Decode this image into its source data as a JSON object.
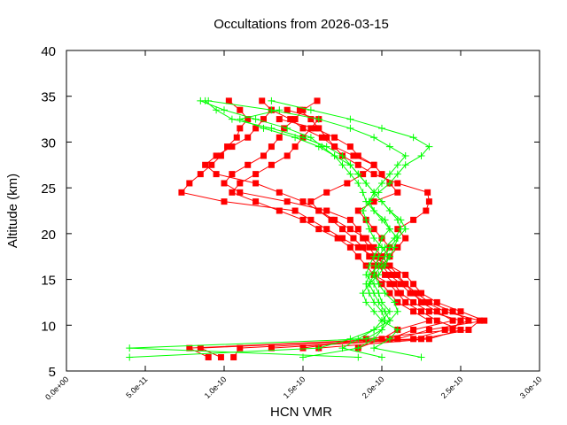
{
  "chart_data": {
    "type": "line",
    "title": "Occultations from 2026-03-15",
    "xlabel": "HCN VMR",
    "ylabel": "Altitude (km)",
    "xlim": [
      0,
      3e-10
    ],
    "ylim": [
      5,
      40
    ],
    "x_ticks": [
      "0.0e+00",
      "5.0e-11",
      "1.0e-10",
      "1.5e-10",
      "2.0e-10",
      "2.5e-10",
      "3.0e-10"
    ],
    "x_tick_values": [
      0,
      5e-11,
      1e-10,
      1.5e-10,
      2e-10,
      2.5e-10,
      3e-10
    ],
    "y_ticks": [
      "5",
      "10",
      "15",
      "20",
      "25",
      "30",
      "35",
      "40"
    ],
    "y_tick_values": [
      5,
      10,
      15,
      20,
      25,
      30,
      35,
      40
    ],
    "grid": false,
    "value_unit_scale": 1e-10,
    "altitudes": [
      6.5,
      7.5,
      8.5,
      9.5,
      10.5,
      11.5,
      12.5,
      13.5,
      14.5,
      15.5,
      16.5,
      17.5,
      18.5,
      19.5,
      20.5,
      21.5,
      22.5,
      23.5,
      24.5,
      25.5,
      26.5,
      27.5,
      28.5,
      29.5,
      30.5,
      31.5,
      32.5,
      33.5,
      34.5
    ],
    "colors": {
      "red_series": "#ff0000",
      "green_series": "#00ff00"
    },
    "series": [
      {
        "color": "#ff0000",
        "marker": "square",
        "values": [
          0.9,
          0.78,
          2.05,
          2.2,
          2.45,
          2.35,
          2.25,
          2.2,
          2.15,
          2.1,
          2.05,
          1.95,
          1.85,
          1.75,
          1.65,
          1.55,
          1.45,
          1.0,
          0.73,
          0.78,
          0.85,
          0.92,
          0.98,
          1.02,
          1.08,
          1.1,
          1.15,
          1.1,
          1.03
        ]
      },
      {
        "color": "#ff0000",
        "marker": "square",
        "values": [
          0.98,
          0.85,
          2.1,
          2.3,
          2.65,
          2.5,
          2.35,
          2.25,
          2.2,
          2.15,
          2.05,
          2.0,
          1.95,
          1.9,
          1.8,
          1.7,
          1.6,
          1.5,
          1.35,
          1.2,
          0.95,
          0.88,
          0.95,
          1.05,
          1.15,
          1.2,
          1.25,
          1.3,
          1.24
        ]
      },
      {
        "color": "#ff0000",
        "marker": "square",
        "values": [
          1.06,
          1.1,
          2.2,
          2.4,
          2.55,
          2.45,
          2.3,
          2.22,
          2.15,
          2.08,
          2.02,
          1.96,
          1.92,
          1.88,
          1.85,
          1.8,
          1.65,
          1.4,
          1.1,
          1.0,
          1.05,
          1.15,
          1.25,
          1.3,
          1.35,
          1.38,
          1.45,
          1.5,
          1.59
        ]
      },
      {
        "color": "#ff0000",
        "marker": "square",
        "values": [
          null,
          1.3,
          2.25,
          2.55,
          2.62,
          2.4,
          2.28,
          2.18,
          2.12,
          2.05,
          2.0,
          2.05,
          2.1,
          2.15,
          2.1,
          2.2,
          2.28,
          2.3,
          2.29,
          2.1,
          1.95,
          1.85,
          1.75,
          1.7,
          1.65,
          1.6,
          1.55,
          1.48,
          null
        ]
      },
      {
        "color": "#ff0000",
        "marker": "square",
        "values": [
          null,
          1.6,
          2.3,
          2.5,
          2.35,
          2.25,
          2.15,
          2.1,
          2.05,
          1.95,
          1.9,
          1.85,
          1.8,
          1.72,
          1.6,
          1.5,
          1.35,
          1.2,
          1.05,
          1.1,
          1.2,
          1.3,
          1.4,
          1.45,
          1.5,
          1.55,
          1.6,
          1.4,
          null
        ]
      },
      {
        "color": "#ff0000",
        "marker": "square",
        "values": [
          null,
          1.85,
          2.0,
          2.1,
          2.3,
          2.2,
          2.1,
          2.05,
          2.0,
          1.95,
          1.95,
          2.0,
          2.05,
          2.0,
          1.95,
          1.9,
          1.85,
          1.95,
          2.1,
          2.05,
          2.0,
          1.95,
          1.85,
          1.8,
          1.7,
          1.58,
          1.35,
          null,
          null
        ]
      },
      {
        "color": "#ff0000",
        "marker": "square",
        "values": [
          null,
          1.5,
          1.9,
          2.45,
          2.5,
          2.3,
          2.2,
          2.12,
          2.08,
          2.02,
          1.98,
          1.92,
          1.88,
          1.82,
          1.75,
          1.68,
          1.6,
          1.55,
          1.65,
          1.78,
          1.88,
          1.95,
          1.82,
          1.7,
          1.62,
          1.5,
          1.42,
          1.3,
          null
        ]
      },
      {
        "color": "#00ff00",
        "marker": "plus",
        "values": [
          0.4,
          1.6,
          1.8,
          1.95,
          2.0,
          2.05,
          2.0,
          1.98,
          1.95,
          1.9,
          1.92,
          1.95,
          1.98,
          2.0,
          2.05,
          2.02,
          1.95,
          1.9,
          1.88,
          1.85,
          1.8,
          1.75,
          1.7,
          1.62,
          1.55,
          1.4,
          1.2,
          1.0,
          0.85
        ]
      },
      {
        "color": "#00ff00",
        "marker": "plus",
        "values": [
          1.5,
          1.85,
          1.95,
          2.0,
          2.02,
          2.0,
          1.95,
          1.92,
          1.9,
          1.92,
          1.98,
          2.02,
          2.05,
          2.1,
          2.05,
          2.0,
          1.95,
          1.92,
          1.95,
          2.0,
          2.05,
          2.1,
          2.15,
          2.05,
          1.95,
          1.8,
          1.6,
          1.3,
          0.9
        ]
      },
      {
        "color": "#00ff00",
        "marker": "plus",
        "values": [
          1.85,
          0.4,
          1.9,
          2.0,
          2.05,
          2.02,
          1.98,
          1.95,
          1.92,
          1.95,
          2.0,
          2.05,
          2.08,
          2.1,
          2.15,
          2.12,
          2.05,
          2.0,
          1.95,
          1.9,
          1.85,
          1.8,
          1.75,
          1.65,
          1.5,
          1.3,
          1.05,
          0.95,
          0.88
        ]
      },
      {
        "color": "#00ff00",
        "marker": "plus",
        "values": [
          2.25,
          1.95,
          2.05,
          2.1,
          2.0,
          1.95,
          1.9,
          1.88,
          1.92,
          1.98,
          2.02,
          2.05,
          2.0,
          1.95,
          1.92,
          1.9,
          1.88,
          1.92,
          1.98,
          2.05,
          2.1,
          2.15,
          2.25,
          2.3,
          2.2,
          2.0,
          1.8,
          1.55,
          1.3
        ]
      },
      {
        "color": "#00ff00",
        "marker": "plus",
        "values": [
          2.0,
          1.75,
          1.85,
          1.95,
          2.05,
          2.1,
          2.08,
          2.02,
          1.98,
          1.95,
          1.96,
          1.98,
          2.02,
          2.08,
          2.12,
          2.1,
          2.05,
          2.0,
          1.95,
          1.9,
          1.85,
          1.8,
          1.7,
          1.6,
          1.45,
          1.25,
          1.1,
          1.35,
          null
        ]
      }
    ]
  }
}
